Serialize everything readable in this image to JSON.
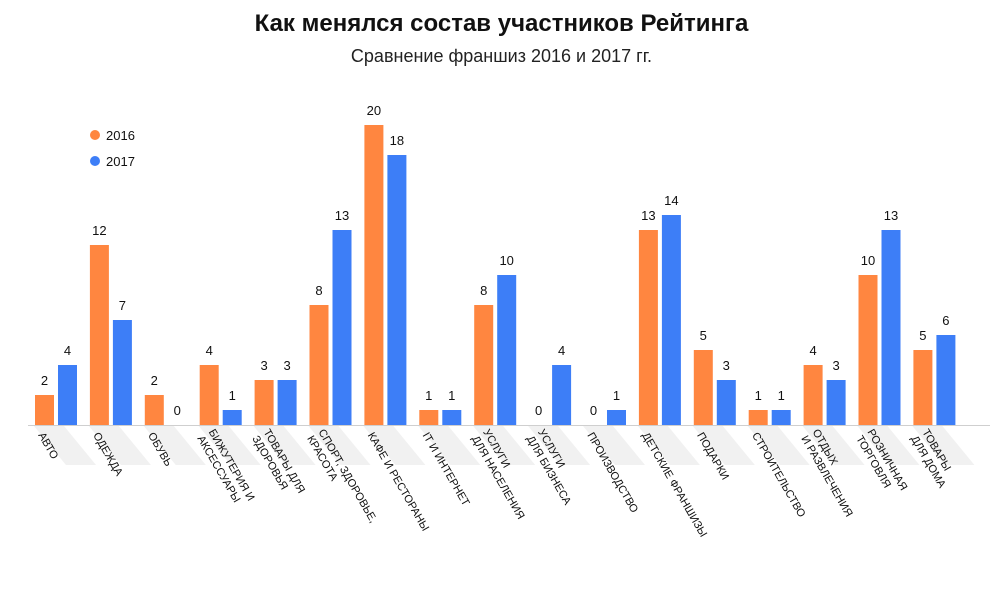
{
  "chart_data": {
    "type": "bar",
    "title": "Как менялся состав участников Рейтинга",
    "subtitle": "Сравнение франшиз 2016 и 2017 гг.",
    "xlabel": "",
    "ylabel": "",
    "ylim": [
      0,
      20
    ],
    "grid": false,
    "legend_position": "top-left",
    "categories": [
      [
        "АВТО"
      ],
      [
        "ОДЕЖДА"
      ],
      [
        "ОБУВЬ"
      ],
      [
        "БИЖУТЕРИЯ И",
        "АКСЕССУАРЫ"
      ],
      [
        "ТОВАРЫ ДЛЯ",
        "ЗДОРОВЬЯ"
      ],
      [
        "СПОРТ, ЗДОРОВЬЕ,",
        "КРАСОТА"
      ],
      [
        "КАФЕ И РЕСТОРАНЫ"
      ],
      [
        "IT И ИНТЕРНЕТ"
      ],
      [
        "УСЛУГИ",
        "ДЛЯ НАСЕЛЕНИЯ"
      ],
      [
        "УСЛУГИ",
        "ДЛЯ БИЗНЕСА"
      ],
      [
        "ПРОИЗВОДСТВО"
      ],
      [
        "ДЕТСКИЕ ФРАНШИЗЫ"
      ],
      [
        "ПОДАРКИ"
      ],
      [
        "СТРОИТЕЛЬСТВО"
      ],
      [
        "ОТДЫХ",
        "И РАЗВЛЕЧЕНИЯ"
      ],
      [
        "РОЗНИЧНАЯ",
        "ТОРГОВЛЯ"
      ],
      [
        "ТОВАРЫ",
        "ДЛЯ ДОМА"
      ]
    ],
    "series": [
      {
        "name": "2016",
        "color": "#ff8640",
        "values": [
          2,
          12,
          2,
          4,
          3,
          8,
          20,
          1,
          8,
          0,
          0,
          13,
          5,
          1,
          4,
          10,
          5
        ]
      },
      {
        "name": "2017",
        "color": "#3d7ef7",
        "values": [
          4,
          7,
          0,
          1,
          3,
          13,
          18,
          1,
          10,
          4,
          1,
          14,
          3,
          1,
          3,
          13,
          6
        ]
      }
    ]
  }
}
